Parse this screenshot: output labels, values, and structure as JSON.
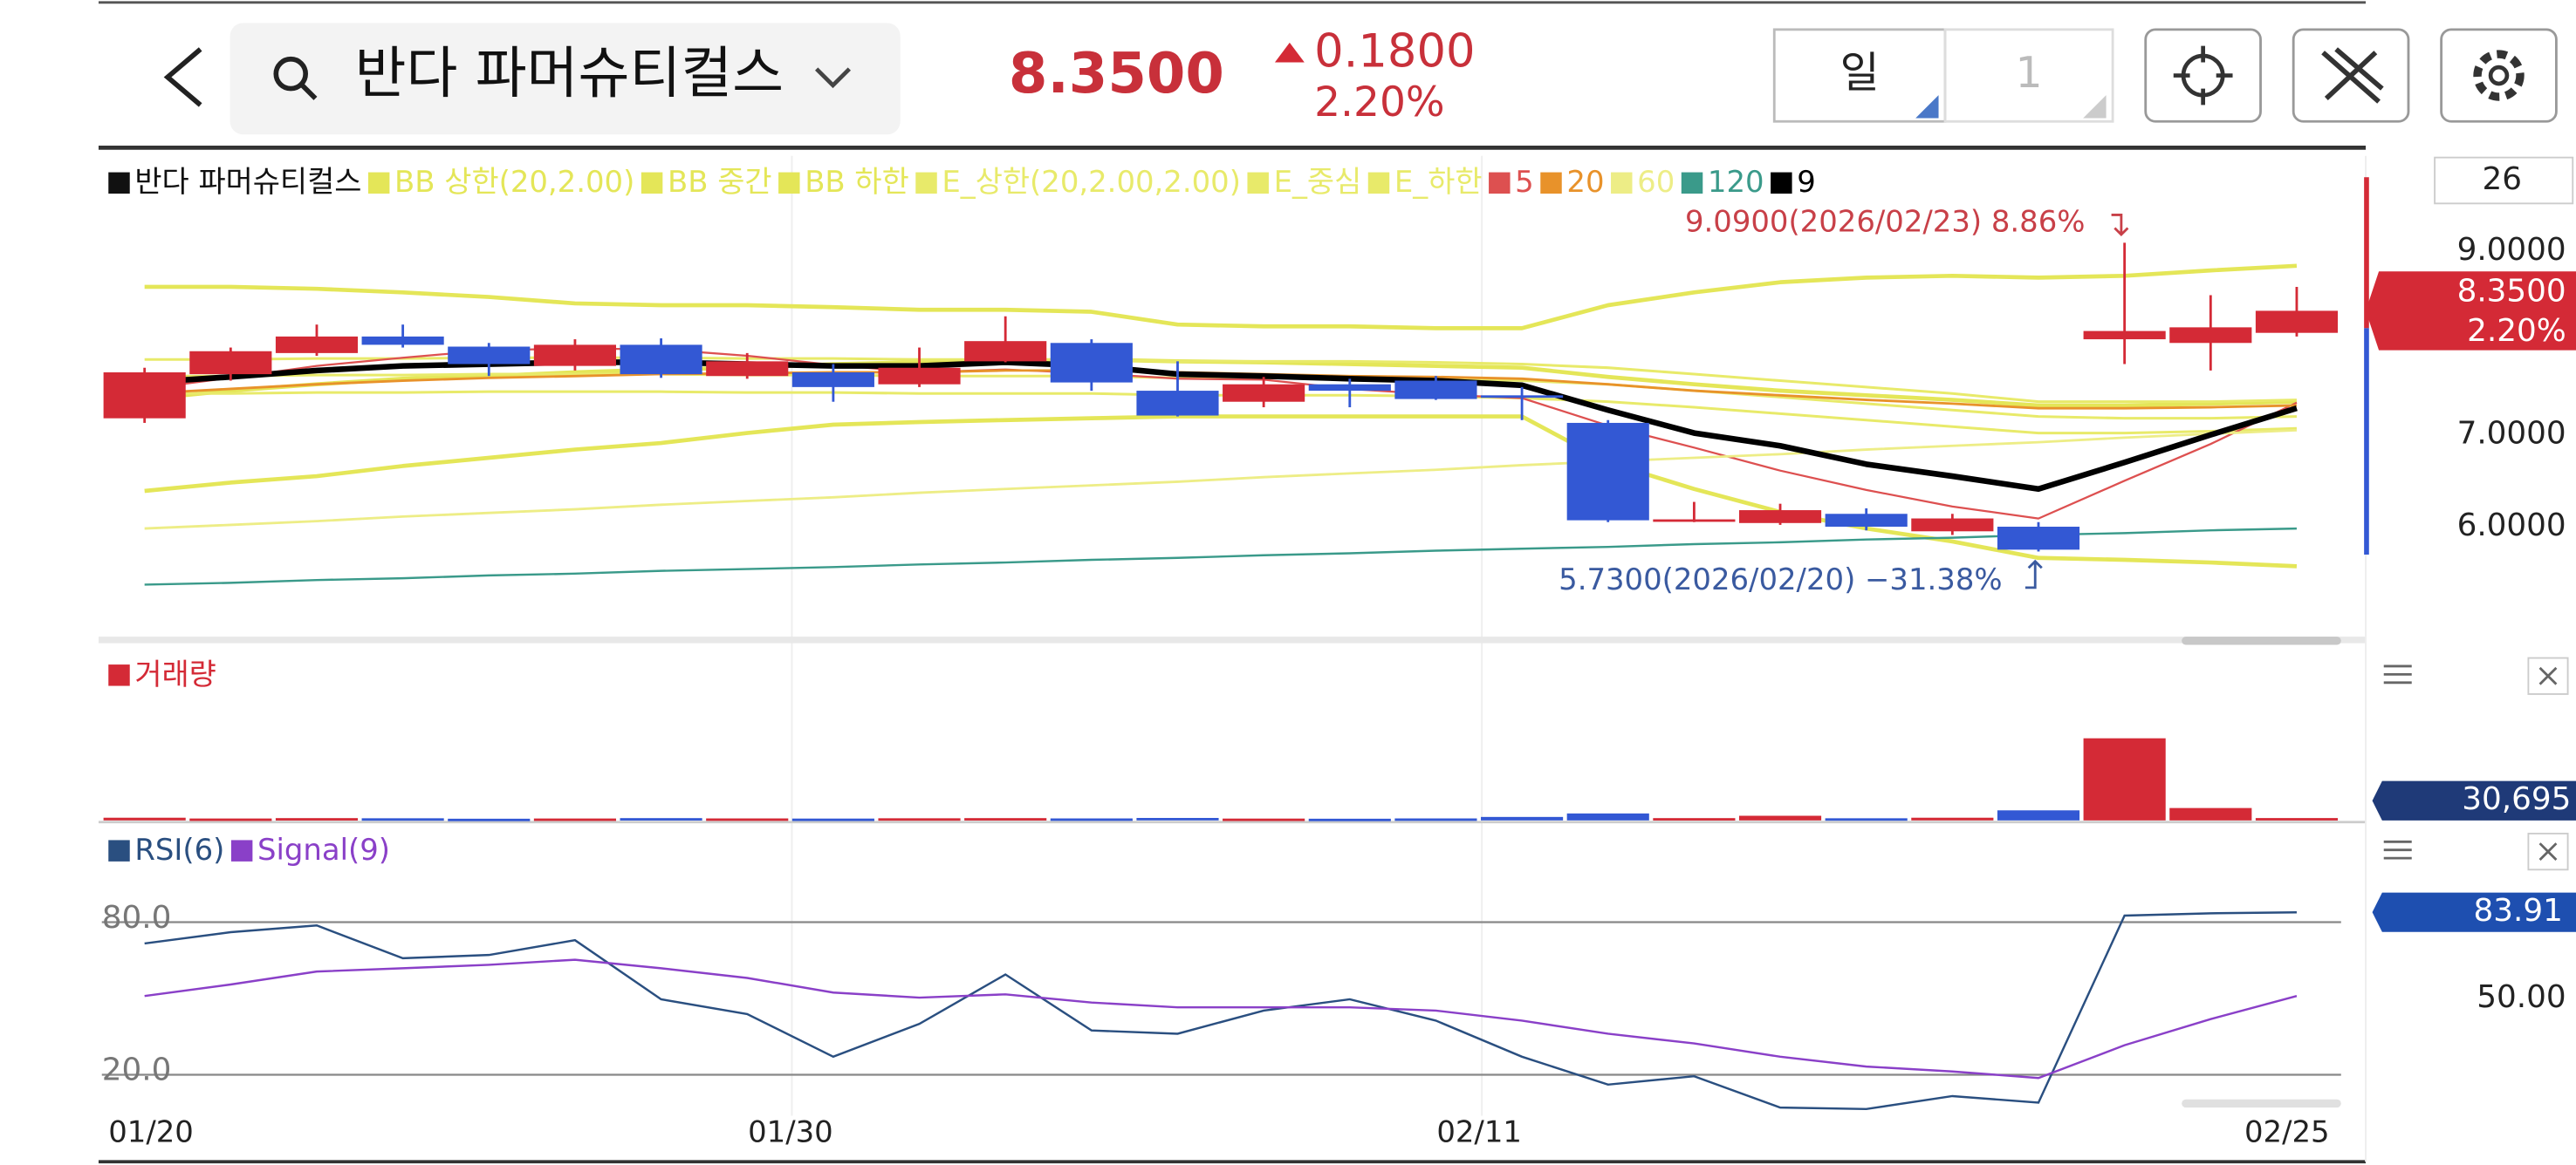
{
  "header": {
    "title": "반다 파머슈티컬스",
    "price": "8.3500",
    "change": "0.1800",
    "change_percent": "2.20%",
    "period": "일",
    "interval": "1"
  },
  "chart_data": [
    {
      "type": "candlestick",
      "legend_title": "반다 파머슈티컬스",
      "visible_count": 26,
      "categories": [
        "01/20",
        null,
        null,
        null,
        null,
        null,
        null,
        null,
        "01/30",
        null,
        null,
        null,
        null,
        null,
        null,
        null,
        "02/11",
        null,
        null,
        null,
        null,
        null,
        null,
        null,
        null,
        "02/25"
      ],
      "open": [
        7.18,
        7.66,
        7.89,
        8.07,
        7.96,
        7.75,
        7.98,
        7.64,
        7.68,
        7.55,
        7.8,
        8.0,
        7.48,
        7.36,
        7.55,
        7.59,
        7.43,
        7.13,
        6.07,
        6.04,
        6.14,
        5.95,
        6.0,
        8.04,
        8.0,
        8.11
      ],
      "high": [
        7.73,
        7.95,
        8.2,
        8.2,
        8.0,
        8.04,
        8.05,
        7.89,
        7.77,
        7.95,
        8.29,
        8.04,
        7.8,
        7.63,
        7.61,
        7.64,
        7.52,
        7.16,
        6.27,
        6.25,
        6.2,
        6.14,
        6.05,
        9.09,
        8.52,
        8.61
      ],
      "low": [
        7.13,
        7.59,
        7.86,
        7.95,
        7.64,
        7.7,
        7.62,
        7.61,
        7.36,
        7.52,
        7.79,
        7.48,
        7.2,
        7.3,
        7.3,
        7.38,
        7.16,
        6.05,
        6.05,
        6.02,
        5.96,
        5.91,
        5.73,
        7.77,
        7.7,
        8.07
      ],
      "close": [
        7.68,
        7.91,
        8.07,
        7.98,
        7.77,
        7.98,
        7.66,
        7.8,
        7.52,
        7.73,
        8.02,
        7.57,
        7.21,
        7.55,
        7.48,
        7.39,
        7.41,
        6.07,
        6.08,
        6.18,
        6.0,
        6.09,
        5.75,
        8.13,
        8.17,
        8.35
      ],
      "up_color": "#d42a36",
      "down_color": "#3358d4",
      "legend_color": "#111111",
      "ylim": [
        4.857,
        10.036
      ],
      "yticks": [
        {
          "value": 6,
          "label": "6.0000"
        },
        {
          "value": 7,
          "label": "7.0000"
        },
        {
          "value": 9,
          "label": "9.0000"
        }
      ],
      "high_label": "9.0900(2026/02/23) 8.86%",
      "low_label": "5.7300(2026/02/20) −31.38%",
      "series": [
        {
          "name": "BB 상한(20,2.00)",
          "color": "#e4e658",
          "line_width": 2.5,
          "values": [
            8.61,
            8.61,
            8.59,
            8.55,
            8.5,
            8.43,
            8.41,
            8.41,
            8.39,
            8.36,
            8.36,
            8.34,
            8.2,
            8.18,
            8.18,
            8.16,
            8.16,
            8.41,
            8.55,
            8.66,
            8.71,
            8.73,
            8.71,
            8.73,
            8.79,
            8.84
          ]
        },
        {
          "name": "BB 중간",
          "color": "#e4e658",
          "line_width": 2.5,
          "values": [
            7.39,
            7.48,
            7.55,
            7.61,
            7.64,
            7.68,
            7.71,
            7.73,
            7.77,
            7.79,
            7.8,
            7.82,
            7.8,
            7.79,
            7.77,
            7.75,
            7.73,
            7.63,
            7.55,
            7.48,
            7.43,
            7.38,
            7.32,
            7.32,
            7.34,
            7.36
          ]
        },
        {
          "name": "BB 하한",
          "color": "#e4e658",
          "line_width": 2.5,
          "values": [
            6.39,
            6.48,
            6.55,
            6.66,
            6.75,
            6.84,
            6.91,
            7.02,
            7.11,
            7.14,
            7.16,
            7.18,
            7.2,
            7.2,
            7.2,
            7.2,
            7.2,
            6.7,
            6.41,
            6.16,
            5.98,
            5.84,
            5.66,
            5.64,
            5.61,
            5.57
          ]
        },
        {
          "name": "E_상한(20,2.00,2.00)",
          "color": "#e8ea6a",
          "line_width": 1.6,
          "values": [
            7.82,
            7.82,
            7.83,
            7.83,
            7.84,
            7.84,
            7.84,
            7.83,
            7.83,
            7.82,
            7.82,
            7.82,
            7.8,
            7.8,
            7.8,
            7.79,
            7.77,
            7.73,
            7.66,
            7.59,
            7.52,
            7.45,
            7.36,
            7.36,
            7.36,
            7.38
          ]
        },
        {
          "name": "E_중심",
          "color": "#e8ea6a",
          "line_width": 1.6,
          "values": [
            7.64,
            7.64,
            7.65,
            7.65,
            7.66,
            7.66,
            7.66,
            7.65,
            7.65,
            7.64,
            7.64,
            7.64,
            7.62,
            7.62,
            7.62,
            7.61,
            7.59,
            7.55,
            7.48,
            7.41,
            7.34,
            7.27,
            7.2,
            7.18,
            7.18,
            7.2
          ]
        },
        {
          "name": "E_하한",
          "color": "#e8ea6a",
          "line_width": 1.6,
          "values": [
            7.45,
            7.45,
            7.46,
            7.46,
            7.47,
            7.47,
            7.47,
            7.46,
            7.46,
            7.45,
            7.45,
            7.45,
            7.43,
            7.43,
            7.43,
            7.42,
            7.4,
            7.36,
            7.3,
            7.23,
            7.16,
            7.09,
            7.02,
            7.02,
            7.04,
            7.07
          ]
        },
        {
          "name": "5",
          "color": "#dd5050",
          "line_width": 1.2,
          "values": [
            7.5,
            7.62,
            7.75,
            7.84,
            7.92,
            7.94,
            7.93,
            7.86,
            7.76,
            7.68,
            7.71,
            7.67,
            7.61,
            7.6,
            7.5,
            7.44,
            7.4,
            7.1,
            6.86,
            6.61,
            6.4,
            6.22,
            6.09,
            6.5,
            6.9,
            7.35
          ]
        },
        {
          "name": "20",
          "color": "#e8922a",
          "line_width": 1.5,
          "values": [
            7.45,
            7.5,
            7.55,
            7.59,
            7.62,
            7.64,
            7.66,
            7.67,
            7.68,
            7.68,
            7.7,
            7.7,
            7.68,
            7.66,
            7.64,
            7.63,
            7.61,
            7.55,
            7.48,
            7.43,
            7.38,
            7.34,
            7.29,
            7.29,
            7.3,
            7.32
          ]
        },
        {
          "name": "60",
          "color": "#eded86",
          "line_width": 1.5,
          "values": [
            5.98,
            6.02,
            6.06,
            6.11,
            6.15,
            6.19,
            6.24,
            6.28,
            6.32,
            6.37,
            6.41,
            6.45,
            6.49,
            6.54,
            6.58,
            6.62,
            6.67,
            6.71,
            6.75,
            6.79,
            6.84,
            6.88,
            6.92,
            6.97,
            7.01,
            7.05
          ]
        },
        {
          "name": "120",
          "color": "#3a9a8a",
          "line_width": 1.3,
          "values": [
            5.37,
            5.39,
            5.42,
            5.44,
            5.47,
            5.49,
            5.52,
            5.54,
            5.56,
            5.59,
            5.61,
            5.64,
            5.66,
            5.69,
            5.71,
            5.74,
            5.76,
            5.78,
            5.81,
            5.83,
            5.86,
            5.88,
            5.91,
            5.93,
            5.96,
            5.98
          ]
        },
        {
          "name": "9",
          "color": "#000000",
          "line_width": 3.5,
          "values": [
            7.57,
            7.63,
            7.7,
            7.75,
            7.77,
            7.79,
            7.79,
            7.77,
            7.75,
            7.75,
            7.79,
            7.75,
            7.66,
            7.64,
            7.61,
            7.59,
            7.54,
            7.27,
            7.02,
            6.88,
            6.68,
            6.55,
            6.41,
            6.7,
            7.0,
            7.29
          ]
        }
      ]
    },
    {
      "type": "bar",
      "title": "거래량",
      "color": "#d42a36",
      "label_color": "#1f3a78",
      "ylim": [
        0,
        1800000
      ],
      "values": [
        35000,
        25000,
        30000,
        28000,
        22000,
        25000,
        30000,
        26000,
        24000,
        28000,
        30000,
        26000,
        32000,
        24000,
        22000,
        26000,
        45000,
        90000,
        30000,
        60000,
        28000,
        35000,
        130000,
        1060000,
        160000,
        30695
      ],
      "value_labels": [
        null,
        null,
        null,
        null,
        null,
        null,
        null,
        null,
        null,
        null,
        null,
        null,
        null,
        null,
        null,
        null,
        null,
        null,
        null,
        null,
        null,
        null,
        null,
        null,
        null,
        "30,695"
      ]
    },
    {
      "type": "line",
      "ylim": [
        -2.6,
        116.8
      ],
      "yticks": [
        {
          "value": 20,
          "label": "20.0"
        },
        {
          "value": 80,
          "label": "80.0"
        }
      ],
      "right_ticks": [
        {
          "value": 50,
          "label": "50.00"
        }
      ],
      "series": [
        {
          "name": "RSI(6)",
          "color": "#2a4f80",
          "values": [
            71.6,
            76.1,
            78.7,
            65.8,
            67.1,
            72.9,
            49.7,
            43.9,
            27.1,
            40.0,
            59.4,
            37.4,
            36.1,
            45.2,
            49.7,
            41.3,
            27.1,
            16.1,
            19.4,
            7.1,
            6.5,
            11.6,
            9.0,
            82.6,
            83.5,
            83.91
          ]
        },
        {
          "name": "Signal(9)",
          "color": "#8a40c8",
          "values": [
            51.0,
            55.5,
            60.6,
            61.9,
            63.2,
            65.2,
            61.9,
            58.1,
            52.3,
            50.3,
            51.6,
            48.4,
            46.5,
            46.5,
            46.5,
            45.2,
            41.3,
            36.1,
            32.3,
            27.1,
            23.2,
            21.3,
            18.7,
            31.6,
            41.9,
            51.0
          ]
        }
      ]
    }
  ]
}
